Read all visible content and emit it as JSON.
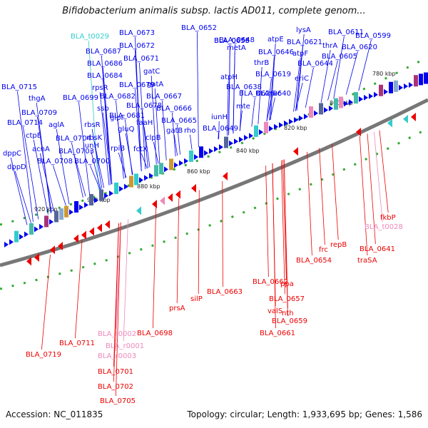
{
  "title": "Bifidobacterium animalis subsp. lactis AD011, complete genom...",
  "footer": {
    "accession": "Accession: NC_011835",
    "summary": "Topology: circular; Length: 1,933,695 bp; Genes: 1,586"
  },
  "colors": {
    "forward_gene": "#0000ee",
    "reverse_gene": "#ee0000",
    "trna": "#33cccc",
    "rrna": "#ee88bb",
    "tick": "#33aa33",
    "backbone": "#777777"
  },
  "ticks": [
    "780 kbp",
    "800 kbp",
    "820 kbp",
    "840 kbp",
    "860 kbp",
    "880 kbp",
    "900 kbp",
    "920 kbp"
  ],
  "forward_labels": [
    {
      "text": "BLA_t0029",
      "type": "trna"
    },
    {
      "text": "BLA_0673",
      "type": "gene"
    },
    {
      "text": "BLA_0687",
      "type": "gene"
    },
    {
      "text": "BLA_0672",
      "type": "gene"
    },
    {
      "text": "BLA_0686",
      "type": "gene"
    },
    {
      "text": "BLA_0671",
      "type": "gene"
    },
    {
      "text": "gatC",
      "type": "gene"
    },
    {
      "text": "BLA_0684",
      "type": "gene"
    },
    {
      "text": "gatA",
      "type": "gene"
    },
    {
      "text": "rpsR",
      "type": "gene"
    },
    {
      "text": "BLA_0679",
      "type": "gene"
    },
    {
      "text": "BLA_0715",
      "type": "gene"
    },
    {
      "text": "BLA_0682",
      "type": "gene"
    },
    {
      "text": "BLA_0667",
      "type": "gene"
    },
    {
      "text": "thgA",
      "type": "gene"
    },
    {
      "text": "BLA_0699",
      "type": "gene"
    },
    {
      "text": "ssb",
      "type": "gene"
    },
    {
      "text": "BLA_0678",
      "type": "gene"
    },
    {
      "text": "BLA_0666",
      "type": "gene"
    },
    {
      "text": "BLA_0709",
      "type": "gene"
    },
    {
      "text": "glpF",
      "type": "gene"
    },
    {
      "text": "BLA_0681",
      "type": "gene"
    },
    {
      "text": "BLA_0665",
      "type": "gene"
    },
    {
      "text": "BLA_0714",
      "type": "gene"
    },
    {
      "text": "rbsR",
      "type": "gene"
    },
    {
      "text": "gluQ",
      "type": "gene"
    },
    {
      "text": "faaH",
      "type": "gene"
    },
    {
      "text": "gatB",
      "type": "gene"
    },
    {
      "text": "aglA",
      "type": "gene"
    },
    {
      "text": "ctpE",
      "type": "gene"
    },
    {
      "text": "rbsK",
      "type": "gene"
    },
    {
      "text": "rho",
      "type": "gene"
    },
    {
      "text": "acnA",
      "type": "gene"
    },
    {
      "text": "BLA_0704",
      "type": "gene"
    },
    {
      "text": "iunH",
      "type": "gene"
    },
    {
      "text": "rpiB",
      "type": "gene"
    },
    {
      "text": "clpB",
      "type": "gene"
    },
    {
      "text": "dppC",
      "type": "gene"
    },
    {
      "text": "BLA_0703",
      "type": "gene"
    },
    {
      "text": "fctX",
      "type": "gene"
    },
    {
      "text": "BLA_0708",
      "type": "gene"
    },
    {
      "text": "BLA_0700",
      "type": "gene"
    },
    {
      "text": "dppD",
      "type": "gene"
    },
    {
      "text": "BLA_0652",
      "type": "gene"
    },
    {
      "text": "metA",
      "type": "gene"
    },
    {
      "text": "lysA",
      "type": "gene"
    },
    {
      "text": "BLA_0648",
      "type": "gene"
    },
    {
      "text": "atpE",
      "type": "gene"
    },
    {
      "text": "BLA_0621",
      "type": "gene"
    },
    {
      "text": "BLA_0611",
      "type": "gene"
    },
    {
      "text": "BLA_0599",
      "type": "gene"
    },
    {
      "text": "thrA",
      "type": "gene"
    },
    {
      "text": "BLA_0646",
      "type": "gene"
    },
    {
      "text": "atpF",
      "type": "gene"
    },
    {
      "text": "BLA_0620",
      "type": "gene"
    },
    {
      "text": "BLA_0605",
      "type": "gene"
    },
    {
      "text": "thrB",
      "type": "gene"
    },
    {
      "text": "BLA_0644",
      "type": "gene"
    },
    {
      "text": "atpH",
      "type": "gene"
    },
    {
      "text": "BLA_0619",
      "type": "gene"
    },
    {
      "text": "eriC",
      "type": "gene"
    },
    {
      "text": "BLA_0638",
      "type": "gene"
    },
    {
      "text": "BLA_0626",
      "type": "gene"
    },
    {
      "text": "BLA_0640",
      "type": "gene"
    },
    {
      "text": "oxc",
      "type": "gene"
    },
    {
      "text": "mte",
      "type": "gene"
    },
    {
      "text": "iunH",
      "type": "gene"
    },
    {
      "text": "BLA_0649",
      "type": "gene"
    },
    {
      "text": "BLA_0653",
      "type": "gene"
    },
    {
      "text": "BLA_0656",
      "type": "gene"
    }
  ],
  "reverse_labels": [
    {
      "text": "fkbP",
      "type": "gene"
    },
    {
      "text": "BLA_t0028",
      "type": "rrna"
    },
    {
      "text": "frc",
      "type": "gene"
    },
    {
      "text": "repB",
      "type": "gene"
    },
    {
      "text": "BLA_0641",
      "type": "gene"
    },
    {
      "text": "traSA",
      "type": "gene"
    },
    {
      "text": "BLA_0654",
      "type": "gene"
    },
    {
      "text": "ppa",
      "type": "gene"
    },
    {
      "text": "BLA_0662",
      "type": "gene"
    },
    {
      "text": "BLA_0663",
      "type": "gene"
    },
    {
      "text": "BLA_0657",
      "type": "gene"
    },
    {
      "text": "silP",
      "type": "gene"
    },
    {
      "text": "nth",
      "type": "gene"
    },
    {
      "text": "valS",
      "type": "gene"
    },
    {
      "text": "BLA_0659",
      "type": "gene"
    },
    {
      "text": "prsA",
      "type": "gene"
    },
    {
      "text": "BLA_0661",
      "type": "gene"
    },
    {
      "text": "BLA_0698",
      "type": "gene"
    },
    {
      "text": "BLA_r0002",
      "type": "rrna"
    },
    {
      "text": "BLA_r0001",
      "type": "rrna"
    },
    {
      "text": "BLA_0711",
      "type": "gene"
    },
    {
      "text": "BLA_r0003",
      "type": "rrna"
    },
    {
      "text": "BLA_0719",
      "type": "gene"
    },
    {
      "text": "BLA_0701",
      "type": "gene"
    },
    {
      "text": "BLA_0702",
      "type": "gene"
    },
    {
      "text": "BLA_0705",
      "type": "gene"
    }
  ]
}
